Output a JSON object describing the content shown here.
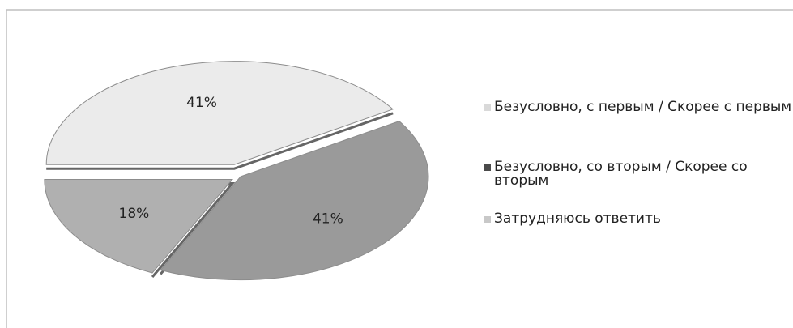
{
  "chart_data": {
    "type": "pie",
    "categories": [
      "Безусловно, с первым / Скорее с первым",
      "Безусловно, со вторым / Скорее со вторым",
      "Затрудняюсь ответить"
    ],
    "values": [
      41,
      41,
      18
    ],
    "value_labels": [
      "41%",
      "41%",
      "18%"
    ],
    "colors": [
      "#ebebeb",
      "#9a9a9a",
      "#b0b0b0"
    ],
    "legend_colors": [
      "#d9d9d9",
      "#4a4a4a",
      "#c8c8c8"
    ],
    "legend": "right"
  }
}
